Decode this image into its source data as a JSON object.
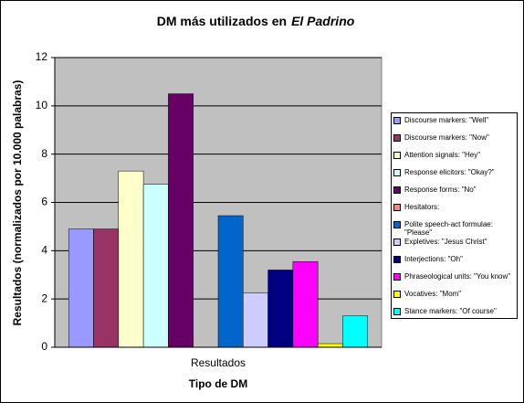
{
  "chart_data": {
    "type": "bar",
    "title": [
      "DM más utilizados en",
      "El Padrino"
    ],
    "x_label": "Tipo de DM",
    "y_label": "Resultados (normalizados por 10.000 palabras)",
    "categories": [
      "Resultados"
    ],
    "ylim": [
      0,
      12
    ],
    "yticks": [
      0,
      2,
      4,
      6,
      8,
      10,
      12
    ],
    "grid": true,
    "legend": "right",
    "series": [
      {
        "name": "Discourse markers: \"Well\"",
        "color": "#9999ff",
        "values": [
          4.9
        ]
      },
      {
        "name": "Discourse markers: \"Now\"",
        "color": "#993366",
        "values": [
          4.9
        ]
      },
      {
        "name": "Attention signals: \"Hey\"",
        "color": "#ffffcc",
        "values": [
          7.3
        ]
      },
      {
        "name": "Response elicitors: \"Okay?\"",
        "color": "#ccffff",
        "values": [
          6.75
        ]
      },
      {
        "name": "Response forms: \"No\"",
        "color": "#660066",
        "values": [
          10.5
        ]
      },
      {
        "name": "Hesitators:",
        "color": "#ff8080",
        "values": [
          0
        ]
      },
      {
        "name": "Polite speech-act formulae: \"Please\"",
        "color": "#0066cc",
        "values": [
          5.45
        ]
      },
      {
        "name": "Expletives: \"Jesus Christ\"",
        "color": "#ccccff",
        "values": [
          2.25
        ]
      },
      {
        "name": "Interjections: \"Oh\"",
        "color": "#000080",
        "values": [
          3.2
        ]
      },
      {
        "name": "Phraseological units: \"You know\"",
        "color": "#ff00ff",
        "values": [
          3.55
        ]
      },
      {
        "name": "Vocatives: \"Mom\"",
        "color": "#ffff00",
        "values": [
          0.15
        ]
      },
      {
        "name": "Stance markers: \"Of course\"",
        "color": "#00ffff",
        "values": [
          1.3
        ]
      }
    ]
  }
}
